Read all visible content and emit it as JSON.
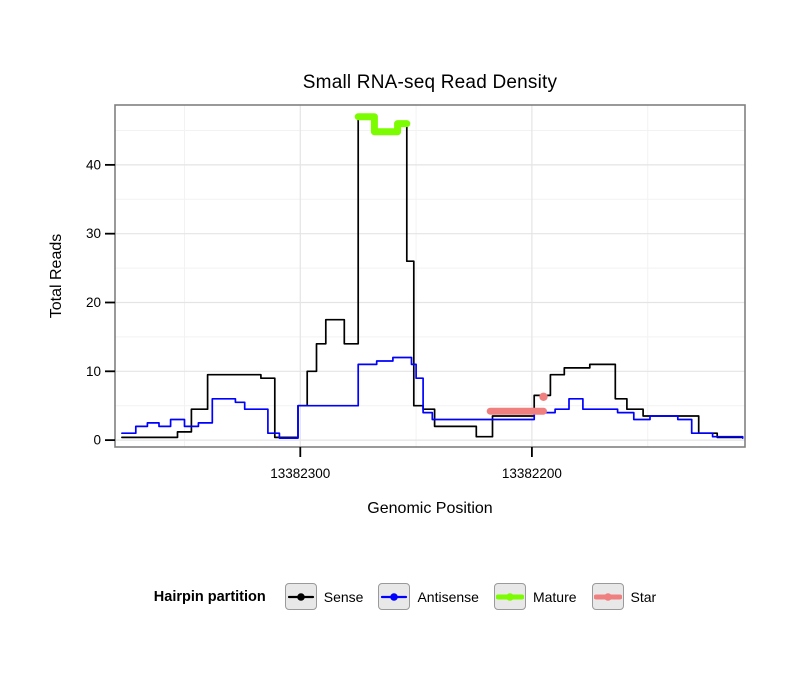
{
  "chart_data": {
    "type": "line",
    "title": "Small RNA-seq Read Density",
    "xlabel": "Genomic Position",
    "ylabel": "Total Reads",
    "legend_title": "Hairpin partition",
    "x_reversed": true,
    "xlim": [
      13382380,
      13382108
    ],
    "ylim": [
      -1,
      48.7
    ],
    "x_ticks": [
      13382300,
      13382200
    ],
    "x_minor_ticks": [
      13382350,
      13382250,
      13382150
    ],
    "y_ticks": [
      0,
      10,
      20,
      30,
      40
    ],
    "y_minor_ticks": [
      5,
      15,
      25,
      35,
      45
    ],
    "grid_major_color": "#E4E4E4",
    "grid_minor_color": "#F2F2F2",
    "panel_border_color": "#808080",
    "tick_color": "#000000",
    "series": [
      {
        "name": "Sense",
        "color": "#000000",
        "width": 1.7,
        "key_width": 2.2,
        "points": [
          [
            13382377,
            0.4
          ],
          [
            13382353,
            1.2
          ],
          [
            13382347,
            4.5
          ],
          [
            13382340,
            9.5
          ],
          [
            13382317,
            9
          ],
          [
            13382311,
            0.4
          ],
          [
            13382301,
            5
          ],
          [
            13382297,
            10
          ],
          [
            13382293,
            14
          ],
          [
            13382289,
            17.5
          ],
          [
            13382281,
            14
          ],
          [
            13382275,
            47
          ],
          [
            13382268,
            44.8
          ],
          [
            13382257,
            46
          ],
          [
            13382254,
            26
          ],
          [
            13382251,
            5
          ],
          [
            13382247,
            4.5
          ],
          [
            13382242,
            2
          ],
          [
            13382224,
            0.5
          ],
          [
            13382217,
            3.5
          ],
          [
            13382199,
            6.5
          ],
          [
            13382192,
            9.5
          ],
          [
            13382186,
            10.5
          ],
          [
            13382175,
            11
          ],
          [
            13382164,
            6
          ],
          [
            13382159,
            4.5
          ],
          [
            13382152,
            3.5
          ],
          [
            13382128,
            1
          ],
          [
            13382120,
            0.4
          ],
          [
            13382109,
            0.4
          ]
        ]
      },
      {
        "name": "Antisense",
        "color": "#0000FF",
        "width": 1.7,
        "key_width": 2.2,
        "points": [
          [
            13382377,
            1
          ],
          [
            13382371,
            2
          ],
          [
            13382366,
            2.5
          ],
          [
            13382361,
            2
          ],
          [
            13382356,
            3
          ],
          [
            13382350,
            2
          ],
          [
            13382344,
            2.5
          ],
          [
            13382338,
            6
          ],
          [
            13382328,
            5.5
          ],
          [
            13382324,
            4.5
          ],
          [
            13382314,
            1
          ],
          [
            13382309,
            0.3
          ],
          [
            13382301,
            5
          ],
          [
            13382275,
            11
          ],
          [
            13382267,
            11.5
          ],
          [
            13382260,
            12
          ],
          [
            13382252,
            11
          ],
          [
            13382250,
            9
          ],
          [
            13382247,
            4
          ],
          [
            13382243,
            3
          ],
          [
            13382199,
            4
          ],
          [
            13382190,
            4.5
          ],
          [
            13382184,
            6
          ],
          [
            13382178,
            4.5
          ],
          [
            13382163,
            4
          ],
          [
            13382156,
            3
          ],
          [
            13382149,
            3.5
          ],
          [
            13382137,
            3
          ],
          [
            13382131,
            1
          ],
          [
            13382122,
            0.5
          ],
          [
            13382109,
            0.3
          ]
        ]
      },
      {
        "name": "Mature",
        "color": "#7CFC00",
        "width": 7,
        "key_width": 5,
        "points": [
          [
            13382275,
            47
          ],
          [
            13382268,
            44.8
          ],
          [
            13382258,
            46
          ],
          [
            13382254,
            46
          ]
        ]
      },
      {
        "name": "Star",
        "color": "#F08080",
        "width": 7,
        "key_width": 5,
        "points": [
          [
            13382218,
            4.2
          ],
          [
            13382195,
            4.2
          ]
        ],
        "marker": {
          "x": 13382195,
          "y": 6.3,
          "r": 4.2
        }
      }
    ]
  }
}
